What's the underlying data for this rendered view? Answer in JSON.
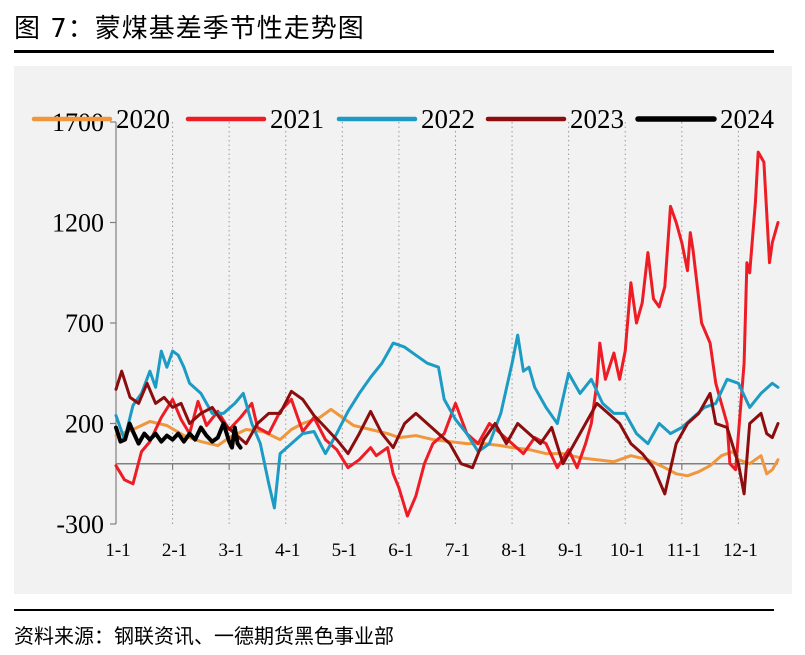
{
  "header": {
    "title": "图 7：蒙煤基差季节性走势图"
  },
  "footer": {
    "source": "资料来源：钢联资讯、一德期货黑色事业部"
  },
  "chart_data": {
    "type": "line",
    "title": "",
    "xlabel": "",
    "ylabel": "",
    "ylim": [
      -300,
      1700
    ],
    "yticks": [
      -300,
      200,
      700,
      1200,
      1700
    ],
    "xticks": [
      "1-1",
      "2-1",
      "3-1",
      "4-1",
      "5-1",
      "6-1",
      "7-1",
      "8-1",
      "9-1",
      "10-1",
      "11-1",
      "12-1"
    ],
    "x_domain_months": [
      0,
      11.7
    ],
    "grid": "vertical dotted at month starts",
    "legend": "top",
    "series": [
      {
        "name": "2020",
        "color": "#f0963c",
        "width": 3,
        "points": [
          [
            0,
            140
          ],
          [
            0.3,
            170
          ],
          [
            0.6,
            210
          ],
          [
            0.9,
            190
          ],
          [
            1.2,
            140
          ],
          [
            1.5,
            110
          ],
          [
            1.8,
            90
          ],
          [
            2.0,
            130
          ],
          [
            2.3,
            170
          ],
          [
            2.6,
            160
          ],
          [
            2.9,
            120
          ],
          [
            3.1,
            170
          ],
          [
            3.3,
            200
          ],
          [
            3.6,
            230
          ],
          [
            3.8,
            270
          ],
          [
            4.0,
            230
          ],
          [
            4.2,
            190
          ],
          [
            4.5,
            170
          ],
          [
            4.8,
            150
          ],
          [
            5.0,
            130
          ],
          [
            5.3,
            140
          ],
          [
            5.6,
            120
          ],
          [
            5.9,
            110
          ],
          [
            6.2,
            100
          ],
          [
            6.5,
            100
          ],
          [
            6.8,
            90
          ],
          [
            7.0,
            80
          ],
          [
            7.3,
            70
          ],
          [
            7.6,
            50
          ],
          [
            7.9,
            50
          ],
          [
            8.2,
            30
          ],
          [
            8.5,
            20
          ],
          [
            8.8,
            10
          ],
          [
            9.1,
            40
          ],
          [
            9.4,
            20
          ],
          [
            9.7,
            -20
          ],
          [
            9.9,
            -50
          ],
          [
            10.1,
            -60
          ],
          [
            10.3,
            -40
          ],
          [
            10.5,
            -10
          ],
          [
            10.7,
            40
          ],
          [
            10.9,
            60
          ],
          [
            11.0,
            20
          ],
          [
            11.2,
            0
          ],
          [
            11.4,
            40
          ],
          [
            11.5,
            -50
          ],
          [
            11.6,
            -30
          ],
          [
            11.7,
            20
          ]
        ]
      },
      {
        "name": "2021",
        "color": "#ee1c24",
        "width": 3,
        "points": [
          [
            0,
            -10
          ],
          [
            0.15,
            -80
          ],
          [
            0.3,
            -100
          ],
          [
            0.45,
            60
          ],
          [
            0.6,
            110
          ],
          [
            0.8,
            230
          ],
          [
            1.0,
            320
          ],
          [
            1.15,
            220
          ],
          [
            1.3,
            150
          ],
          [
            1.45,
            310
          ],
          [
            1.6,
            190
          ],
          [
            1.8,
            260
          ],
          [
            2.0,
            170
          ],
          [
            2.2,
            230
          ],
          [
            2.4,
            300
          ],
          [
            2.5,
            180
          ],
          [
            2.7,
            150
          ],
          [
            2.9,
            260
          ],
          [
            3.1,
            320
          ],
          [
            3.3,
            160
          ],
          [
            3.5,
            230
          ],
          [
            3.7,
            120
          ],
          [
            3.9,
            70
          ],
          [
            4.1,
            -20
          ],
          [
            4.3,
            20
          ],
          [
            4.5,
            80
          ],
          [
            4.6,
            40
          ],
          [
            4.8,
            80
          ],
          [
            4.9,
            -50
          ],
          [
            5.0,
            -120
          ],
          [
            5.15,
            -260
          ],
          [
            5.3,
            -160
          ],
          [
            5.45,
            0
          ],
          [
            5.6,
            100
          ],
          [
            5.8,
            150
          ],
          [
            6.0,
            300
          ],
          [
            6.2,
            150
          ],
          [
            6.4,
            100
          ],
          [
            6.6,
            200
          ],
          [
            6.8,
            150
          ],
          [
            7.0,
            100
          ],
          [
            7.2,
            50
          ],
          [
            7.4,
            130
          ],
          [
            7.6,
            100
          ],
          [
            7.8,
            -20
          ],
          [
            8.0,
            70
          ],
          [
            8.15,
            -20
          ],
          [
            8.3,
            100
          ],
          [
            8.4,
            200
          ],
          [
            8.5,
            400
          ],
          [
            8.55,
            600
          ],
          [
            8.65,
            420
          ],
          [
            8.8,
            550
          ],
          [
            8.9,
            420
          ],
          [
            9.0,
            560
          ],
          [
            9.1,
            900
          ],
          [
            9.2,
            700
          ],
          [
            9.3,
            800
          ],
          [
            9.4,
            1050
          ],
          [
            9.5,
            820
          ],
          [
            9.6,
            780
          ],
          [
            9.7,
            880
          ],
          [
            9.8,
            1280
          ],
          [
            9.9,
            1200
          ],
          [
            10.0,
            1100
          ],
          [
            10.1,
            960
          ],
          [
            10.15,
            1150
          ],
          [
            10.2,
            1060
          ],
          [
            10.35,
            700
          ],
          [
            10.5,
            600
          ],
          [
            10.6,
            400
          ],
          [
            10.7,
            300
          ],
          [
            10.8,
            200
          ],
          [
            10.85,
            0
          ],
          [
            10.95,
            -30
          ],
          [
            11.1,
            500
          ],
          [
            11.15,
            1000
          ],
          [
            11.2,
            950
          ],
          [
            11.3,
            1300
          ],
          [
            11.35,
            1550
          ],
          [
            11.45,
            1500
          ],
          [
            11.55,
            1000
          ],
          [
            11.6,
            1100
          ],
          [
            11.7,
            1200
          ]
        ]
      },
      {
        "name": "2022",
        "color": "#1c9bc4",
        "width": 3,
        "points": [
          [
            0,
            240
          ],
          [
            0.15,
            120
          ],
          [
            0.3,
            290
          ],
          [
            0.45,
            350
          ],
          [
            0.6,
            460
          ],
          [
            0.7,
            380
          ],
          [
            0.8,
            560
          ],
          [
            0.9,
            480
          ],
          [
            1.0,
            560
          ],
          [
            1.1,
            540
          ],
          [
            1.2,
            480
          ],
          [
            1.3,
            400
          ],
          [
            1.5,
            350
          ],
          [
            1.7,
            250
          ],
          [
            1.9,
            250
          ],
          [
            2.1,
            300
          ],
          [
            2.25,
            350
          ],
          [
            2.4,
            200
          ],
          [
            2.55,
            100
          ],
          [
            2.7,
            -100
          ],
          [
            2.8,
            -220
          ],
          [
            2.9,
            50
          ],
          [
            3.1,
            100
          ],
          [
            3.3,
            150
          ],
          [
            3.5,
            160
          ],
          [
            3.7,
            50
          ],
          [
            3.9,
            150
          ],
          [
            4.1,
            260
          ],
          [
            4.3,
            350
          ],
          [
            4.5,
            430
          ],
          [
            4.7,
            500
          ],
          [
            4.9,
            600
          ],
          [
            5.1,
            580
          ],
          [
            5.3,
            540
          ],
          [
            5.5,
            500
          ],
          [
            5.7,
            480
          ],
          [
            5.8,
            320
          ],
          [
            6.0,
            220
          ],
          [
            6.2,
            150
          ],
          [
            6.4,
            60
          ],
          [
            6.6,
            100
          ],
          [
            6.8,
            250
          ],
          [
            7.0,
            500
          ],
          [
            7.1,
            640
          ],
          [
            7.2,
            460
          ],
          [
            7.3,
            480
          ],
          [
            7.4,
            380
          ],
          [
            7.6,
            280
          ],
          [
            7.8,
            200
          ],
          [
            8.0,
            450
          ],
          [
            8.2,
            350
          ],
          [
            8.4,
            420
          ],
          [
            8.6,
            300
          ],
          [
            8.8,
            250
          ],
          [
            9.0,
            250
          ],
          [
            9.2,
            150
          ],
          [
            9.4,
            100
          ],
          [
            9.6,
            200
          ],
          [
            9.8,
            150
          ],
          [
            10.0,
            180
          ],
          [
            10.2,
            230
          ],
          [
            10.4,
            280
          ],
          [
            10.6,
            300
          ],
          [
            10.8,
            420
          ],
          [
            11.0,
            400
          ],
          [
            11.2,
            280
          ],
          [
            11.4,
            350
          ],
          [
            11.6,
            400
          ],
          [
            11.7,
            380
          ]
        ]
      },
      {
        "name": "2023",
        "color": "#8b0d0d",
        "width": 3,
        "points": [
          [
            0,
            370
          ],
          [
            0.1,
            460
          ],
          [
            0.25,
            330
          ],
          [
            0.4,
            300
          ],
          [
            0.55,
            400
          ],
          [
            0.7,
            300
          ],
          [
            0.85,
            330
          ],
          [
            1.0,
            280
          ],
          [
            1.15,
            300
          ],
          [
            1.3,
            200
          ],
          [
            1.5,
            250
          ],
          [
            1.7,
            280
          ],
          [
            1.9,
            200
          ],
          [
            2.1,
            150
          ],
          [
            2.3,
            100
          ],
          [
            2.5,
            200
          ],
          [
            2.7,
            250
          ],
          [
            2.9,
            250
          ],
          [
            3.1,
            360
          ],
          [
            3.3,
            320
          ],
          [
            3.5,
            240
          ],
          [
            3.7,
            180
          ],
          [
            3.9,
            120
          ],
          [
            4.1,
            50
          ],
          [
            4.3,
            150
          ],
          [
            4.5,
            260
          ],
          [
            4.7,
            150
          ],
          [
            4.9,
            80
          ],
          [
            5.1,
            200
          ],
          [
            5.3,
            250
          ],
          [
            5.5,
            200
          ],
          [
            5.7,
            150
          ],
          [
            5.9,
            100
          ],
          [
            6.1,
            0
          ],
          [
            6.3,
            -20
          ],
          [
            6.5,
            120
          ],
          [
            6.7,
            200
          ],
          [
            6.9,
            100
          ],
          [
            7.1,
            200
          ],
          [
            7.3,
            150
          ],
          [
            7.5,
            100
          ],
          [
            7.7,
            180
          ],
          [
            7.9,
            0
          ],
          [
            8.1,
            100
          ],
          [
            8.3,
            200
          ],
          [
            8.5,
            300
          ],
          [
            8.7,
            250
          ],
          [
            8.9,
            200
          ],
          [
            9.1,
            100
          ],
          [
            9.3,
            50
          ],
          [
            9.5,
            -20
          ],
          [
            9.7,
            -150
          ],
          [
            9.9,
            100
          ],
          [
            10.1,
            200
          ],
          [
            10.3,
            250
          ],
          [
            10.5,
            350
          ],
          [
            10.6,
            200
          ],
          [
            10.8,
            180
          ],
          [
            11.0,
            0
          ],
          [
            11.1,
            -150
          ],
          [
            11.2,
            200
          ],
          [
            11.4,
            250
          ],
          [
            11.5,
            150
          ],
          [
            11.6,
            130
          ],
          [
            11.7,
            200
          ]
        ]
      },
      {
        "name": "2024",
        "color": "#000000",
        "width": 4,
        "points": [
          [
            0,
            180
          ],
          [
            0.08,
            110
          ],
          [
            0.16,
            120
          ],
          [
            0.24,
            200
          ],
          [
            0.3,
            160
          ],
          [
            0.4,
            100
          ],
          [
            0.5,
            150
          ],
          [
            0.6,
            120
          ],
          [
            0.7,
            150
          ],
          [
            0.8,
            110
          ],
          [
            0.9,
            140
          ],
          [
            1.0,
            120
          ],
          [
            1.1,
            150
          ],
          [
            1.2,
            110
          ],
          [
            1.3,
            150
          ],
          [
            1.4,
            120
          ],
          [
            1.5,
            180
          ],
          [
            1.6,
            140
          ],
          [
            1.7,
            110
          ],
          [
            1.8,
            130
          ],
          [
            1.9,
            200
          ],
          [
            2.0,
            110
          ],
          [
            2.05,
            80
          ],
          [
            2.1,
            180
          ],
          [
            2.15,
            100
          ],
          [
            2.2,
            80
          ]
        ]
      }
    ]
  }
}
